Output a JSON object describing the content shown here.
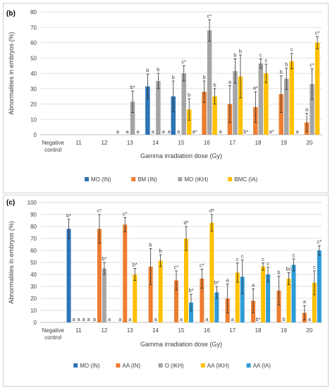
{
  "chart_data": [
    {
      "type": "bar",
      "panel_label": "(b)",
      "ylabel": "Abnormalities in embryos (%)",
      "xlabel": "Gamma irradiation dose (Gy)",
      "ylim": [
        0,
        80
      ],
      "yticks": [
        0,
        10,
        20,
        30,
        40,
        50,
        60,
        70,
        80
      ],
      "grid": true,
      "legend_position": "bottom",
      "categories": [
        "Negative control",
        "11",
        "12",
        "13",
        "14",
        "15",
        "16",
        "17",
        "18",
        "19",
        "20"
      ],
      "series": [
        {
          "name": "MO (IN)",
          "color": "#2e75b6",
          "values": [
            null,
            null,
            null,
            null,
            31.5,
            25,
            null,
            null,
            null,
            null,
            null
          ],
          "errors": [
            null,
            null,
            null,
            null,
            8,
            10,
            null,
            null,
            null,
            null,
            null
          ],
          "labels": [
            "",
            "",
            "",
            "",
            "b",
            "b",
            "",
            "",
            "",
            "",
            ""
          ]
        },
        {
          "name": "BM (IN)",
          "color": "#ed7d31",
          "values": [
            null,
            null,
            null,
            0,
            0,
            0,
            28,
            20,
            18,
            26.5,
            8
          ],
          "errors": [
            null,
            null,
            null,
            0,
            0,
            0,
            7,
            12,
            10,
            12,
            6
          ],
          "labels": [
            "",
            "",
            "",
            "a",
            "a",
            "a",
            "b",
            "a",
            "a*",
            "b",
            "a"
          ]
        },
        {
          "name": "MO (IKH)",
          "color": "#a5a5a5",
          "values": [
            null,
            null,
            null,
            21.5,
            35,
            40,
            68,
            41.5,
            46.5,
            36.5,
            33
          ],
          "errors": [
            null,
            null,
            null,
            7,
            5,
            5,
            7,
            8,
            3,
            7,
            10
          ],
          "labels": [
            "",
            "",
            "",
            "b*",
            "b",
            "c*",
            "c*",
            "b",
            "c",
            "b",
            "c*"
          ]
        },
        {
          "name": "BMC (IA)",
          "color": "#ffc000",
          "values": [
            null,
            null,
            null,
            0,
            0,
            16.5,
            25,
            38,
            40,
            48,
            60
          ],
          "errors": [
            null,
            null,
            null,
            0,
            0,
            7,
            5,
            14,
            6,
            5,
            4
          ],
          "labels": [
            "",
            "",
            "",
            "a",
            "a",
            "b",
            "b",
            "b",
            "c",
            "c",
            "c*"
          ]
        }
      ],
      "baseline_labels": [
        {
          "category": "13",
          "text": "a"
        },
        {
          "category": "15",
          "text": "a"
        },
        {
          "category": "16",
          "text": "a*"
        },
        {
          "category": "17",
          "text": "a"
        },
        {
          "category": "18",
          "text": "b*"
        },
        {
          "category": "19",
          "text": "a*"
        },
        {
          "category": "20",
          "text": "a"
        }
      ]
    },
    {
      "type": "bar",
      "panel_label": "(c)",
      "ylabel": "Abnormalities in embryos (%)",
      "xlabel": "Gamma irradiation dose (Gy)",
      "ylim": [
        0,
        100
      ],
      "yticks": [
        0,
        10,
        20,
        30,
        40,
        50,
        60,
        70,
        80,
        90,
        100
      ],
      "grid": true,
      "legend_position": "bottom",
      "categories": [
        "Negative control",
        "11",
        "12",
        "13",
        "14",
        "15",
        "16",
        "17",
        "18",
        "19",
        "20"
      ],
      "series": [
        {
          "name": "MO (IN)",
          "color": "#2e75b6",
          "values": [
            null,
            78,
            0,
            0,
            0,
            0,
            0,
            0,
            0,
            0,
            0
          ],
          "errors": [
            null,
            8,
            0,
            0,
            0,
            0,
            0,
            0,
            0,
            0,
            0
          ],
          "labels": [
            "",
            "b*",
            "a",
            "a",
            "",
            "",
            "",
            "",
            "",
            "",
            ""
          ]
        },
        {
          "name": "AA (IN)",
          "color": "#ed7d31",
          "values": [
            null,
            0,
            78,
            81.5,
            46.5,
            35,
            36.5,
            20,
            18,
            26.5,
            8
          ],
          "errors": [
            null,
            0,
            12,
            6,
            15,
            8,
            8,
            12,
            10,
            12,
            6
          ],
          "labels": [
            "",
            "a",
            "c*",
            "c*",
            "b",
            "c*",
            "c*",
            "a",
            "a",
            "b",
            "a"
          ]
        },
        {
          "name": "O (IKH)",
          "color": "#a5a5a5",
          "values": [
            null,
            0,
            45,
            0,
            0,
            0,
            0,
            0,
            0,
            0,
            0
          ],
          "errors": [
            null,
            0,
            5,
            0,
            0,
            0,
            0,
            0,
            0,
            0,
            0
          ],
          "labels": [
            "",
            "a",
            "b*",
            "a",
            "a",
            "a",
            "a",
            "a",
            "b*",
            "b",
            "a"
          ]
        },
        {
          "name": "AA (IKH)",
          "color": "#ffc000",
          "values": [
            null,
            0,
            0,
            40,
            51.5,
            70,
            83,
            41.5,
            46.5,
            36.5,
            33
          ],
          "errors": [
            null,
            0,
            0,
            5,
            5,
            10,
            7,
            8,
            3,
            5,
            10
          ],
          "labels": [
            "",
            "a",
            "a",
            "b*",
            "b",
            "d*",
            "d*",
            "c",
            "c",
            "bc",
            "c"
          ]
        },
        {
          "name": "AA (IA)",
          "color": "#2e9bd6",
          "values": [
            null,
            0,
            0,
            0,
            0,
            16.5,
            25,
            38,
            40,
            48,
            60
          ],
          "errors": [
            null,
            0,
            0,
            0,
            0,
            7,
            5,
            14,
            6,
            5,
            4
          ],
          "labels": [
            "",
            "a",
            "",
            "",
            "",
            "b*",
            "b*",
            "c",
            "c",
            "c",
            "c*"
          ]
        }
      ]
    }
  ]
}
